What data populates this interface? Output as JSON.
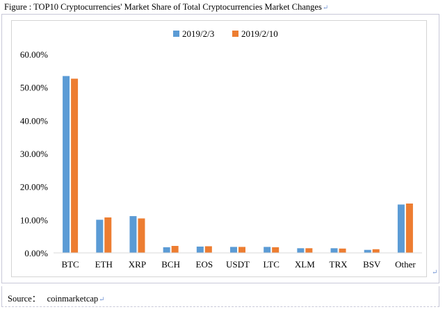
{
  "figure": {
    "caption": "Figure : TOP10 Cryptocurrencies' Market Share of Total Cryptocurrencies Market Changes",
    "source_label": "Source：",
    "source_value": "coinmarketcap"
  },
  "colors": {
    "series1": "#5b9bd5",
    "series2": "#ed7d31",
    "axis": "#d9d9d9"
  },
  "chart_data": {
    "type": "bar",
    "categories": [
      "BTC",
      "ETH",
      "XRP",
      "BCH",
      "EOS",
      "USDT",
      "LTC",
      "XLM",
      "TRX",
      "BSV",
      "Other"
    ],
    "series": [
      {
        "name": "2019/2/3",
        "values": [
          53.4,
          10.0,
          11.1,
          1.7,
          1.9,
          1.8,
          1.8,
          1.4,
          1.4,
          0.9,
          14.6
        ]
      },
      {
        "name": "2019/2/10",
        "values": [
          52.6,
          10.7,
          10.4,
          2.1,
          2.0,
          1.8,
          1.7,
          1.4,
          1.3,
          1.1,
          14.9
        ]
      }
    ],
    "yticks": [
      "0.00%",
      "10.00%",
      "20.00%",
      "30.00%",
      "40.00%",
      "50.00%",
      "60.00%"
    ],
    "ylim": [
      0,
      60
    ],
    "legend": "top-center",
    "grid": false
  }
}
